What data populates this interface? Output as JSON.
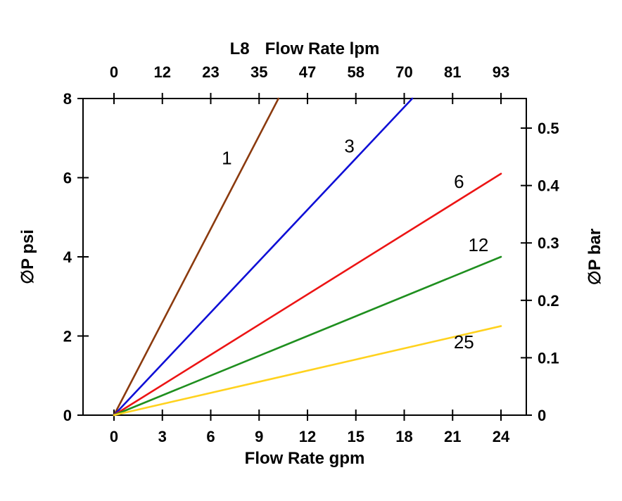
{
  "chart_data": {
    "type": "line",
    "title": "L8 Flow Rate lpm",
    "model": "L8",
    "top_axis": {
      "label": "Flow Rate lpm",
      "ticks": [
        "0",
        "12",
        "23",
        "35",
        "47",
        "58",
        "70",
        "81",
        "93"
      ]
    },
    "bottom_axis": {
      "label": "Flow Rate gpm",
      "ticks": [
        0,
        3,
        6,
        9,
        12,
        15,
        18,
        21,
        24
      ],
      "range": [
        0,
        24
      ]
    },
    "left_axis": {
      "label": "∅P psi",
      "ticks": [
        0,
        2,
        4,
        6,
        8
      ],
      "range": [
        0,
        8
      ]
    },
    "right_axis": {
      "label": "∅P bar",
      "ticks": [
        0,
        0.1,
        0.2,
        0.3,
        0.4,
        0.5
      ],
      "psi_per_bar": 14.5038
    },
    "grid": false,
    "legend": "inline-labels",
    "series": [
      {
        "name": "1",
        "color": "#8b3a0e",
        "points": [
          [
            0,
            0
          ],
          [
            10.2,
            8
          ]
        ],
        "label_at": [
          7.0,
          6.5
        ]
      },
      {
        "name": "3",
        "color": "#0f0fd6",
        "points": [
          [
            0,
            0
          ],
          [
            18.5,
            8
          ]
        ],
        "label_at": [
          14.6,
          6.8
        ]
      },
      {
        "name": "6",
        "color": "#ec1414",
        "points": [
          [
            0,
            0
          ],
          [
            24,
            6.1
          ]
        ],
        "label_at": [
          21.4,
          5.9
        ]
      },
      {
        "name": "12",
        "color": "#1f8f1f",
        "points": [
          [
            0,
            0
          ],
          [
            24,
            4.0
          ]
        ],
        "label_at": [
          22.6,
          4.3
        ]
      },
      {
        "name": "25",
        "color": "#ffd21e",
        "points": [
          [
            0,
            0
          ],
          [
            24,
            2.25
          ]
        ],
        "label_at": [
          21.7,
          1.85
        ]
      }
    ]
  }
}
